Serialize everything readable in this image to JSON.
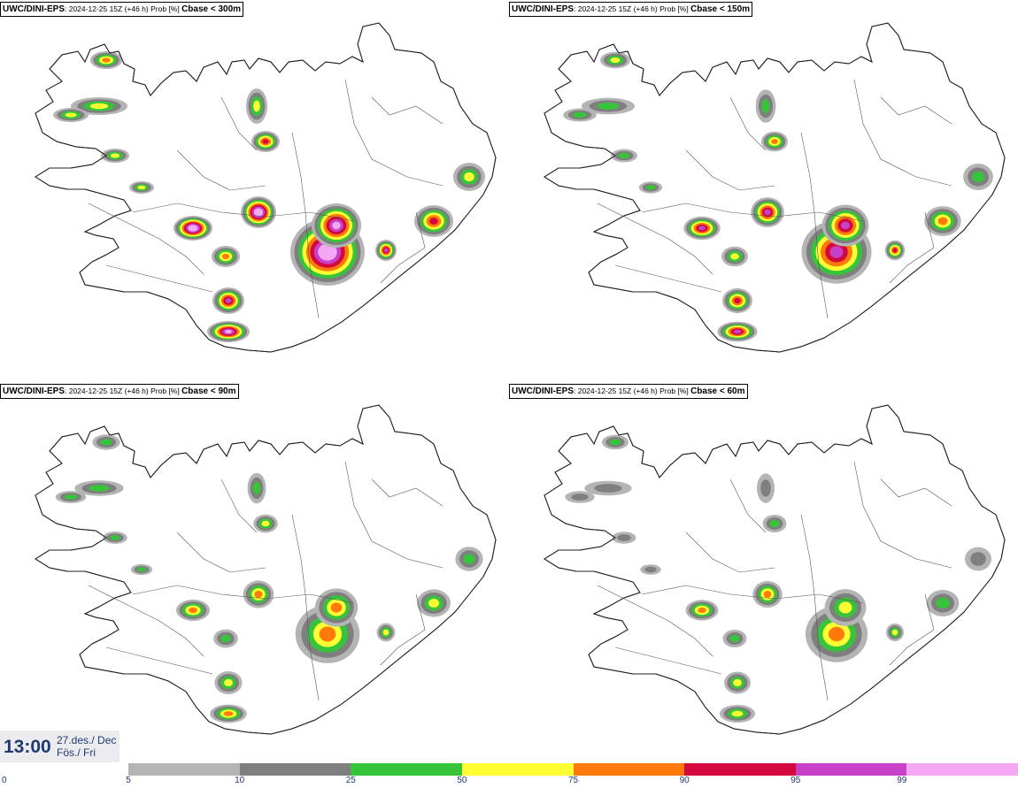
{
  "panels": [
    {
      "model": "UWC/DINI-EPS",
      "meta": ": 2024-12-25 15Z (+46 h) Prob [%] ",
      "threshold": "Cbase < 300m",
      "intensity": 1.0
    },
    {
      "model": "UWC/DINI-EPS",
      "meta": ": 2024-12-25 15Z (+46 h) Prob [%] ",
      "threshold": "Cbase < 150m",
      "intensity": 0.8
    },
    {
      "model": "UWC/DINI-EPS",
      "meta": ": 2024-12-25 15Z (+46 h) Prob [%] ",
      "threshold": "Cbase < 90m",
      "intensity": 0.55
    },
    {
      "model": "UWC/DINI-EPS",
      "meta": ": 2024-12-25 15Z (+46 h) Prob [%] ",
      "threshold": "Cbase < 60m",
      "intensity": 0.45
    }
  ],
  "valid_time": {
    "time": "13:00",
    "date_line1": "27.des./ Dec",
    "date_line2": "Fös./ Fri"
  },
  "legend": {
    "ticks": [
      "0",
      "5",
      "10",
      "25",
      "50",
      "75",
      "90",
      "95",
      "99"
    ],
    "colors": [
      "#b4b4b4",
      "#7f7f7f",
      "#36c43a",
      "#ffff33",
      "#ff7a0a",
      "#d4083c",
      "#c640c8",
      "#f4a8f4"
    ]
  }
}
